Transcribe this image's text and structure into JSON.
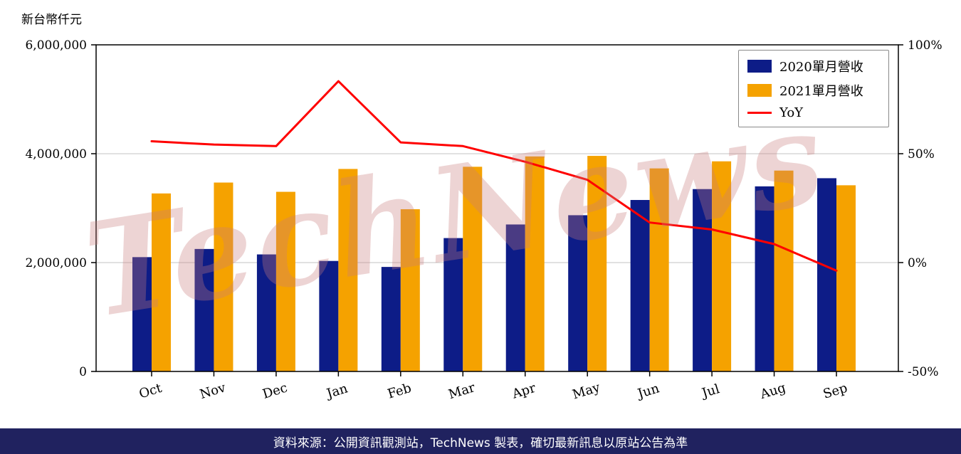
{
  "page": {
    "unit_label": "新台幣仟元",
    "watermark": "TechNews",
    "footer": "資料來源：公開資訊觀測站，TechNews 製表，確切最新訊息以原站公告為準"
  },
  "colors": {
    "bar_2020": "#0d1c87",
    "bar_2021": "#f5a200",
    "yoy_line": "#ff0000",
    "footer_bg": "#20225f",
    "gridline": "#cfcfcf"
  },
  "chart_data": {
    "type": "bar",
    "subtype": "grouped-bars-with-line",
    "title": "",
    "xlabel": "",
    "ylabel_left": "新台幣仟元",
    "categories": [
      "Oct",
      "Nov",
      "Dec",
      "Jan",
      "Feb",
      "Mar",
      "Apr",
      "May",
      "Jun",
      "Jul",
      "Aug",
      "Sep"
    ],
    "series": [
      {
        "name": "2020單月營收",
        "type": "bar",
        "axis": "left",
        "color": "#0d1c87",
        "values": [
          2100000,
          2250000,
          2150000,
          2030000,
          1920000,
          2450000,
          2700000,
          2870000,
          3150000,
          3350000,
          3400000,
          3550000
        ]
      },
      {
        "name": "2021單月營收",
        "type": "bar",
        "axis": "left",
        "color": "#f5a200",
        "values": [
          3270000,
          3470000,
          3300000,
          3720000,
          2980000,
          3760000,
          3950000,
          3960000,
          3730000,
          3860000,
          3690000,
          3420000
        ]
      },
      {
        "name": "YoY",
        "type": "line",
        "axis": "right",
        "color": "#ff0000",
        "values": [
          55.7,
          54.2,
          53.5,
          83.3,
          55.2,
          53.5,
          46.3,
          38.0,
          18.4,
          15.2,
          8.5,
          -3.7
        ]
      }
    ],
    "left_axis": {
      "min": 0,
      "max": 6000000,
      "tick_values": [
        0,
        2000000,
        4000000,
        6000000
      ],
      "ticks": [
        "0",
        "2,000,000",
        "4,000,000",
        "6,000,000"
      ]
    },
    "right_axis": {
      "min": -50,
      "max": 100,
      "tick_values": [
        -50,
        0,
        50,
        100
      ],
      "ticks": [
        "-50%",
        "0%",
        "50%",
        "100%"
      ]
    },
    "grid": true,
    "legend_position": "top-right"
  }
}
